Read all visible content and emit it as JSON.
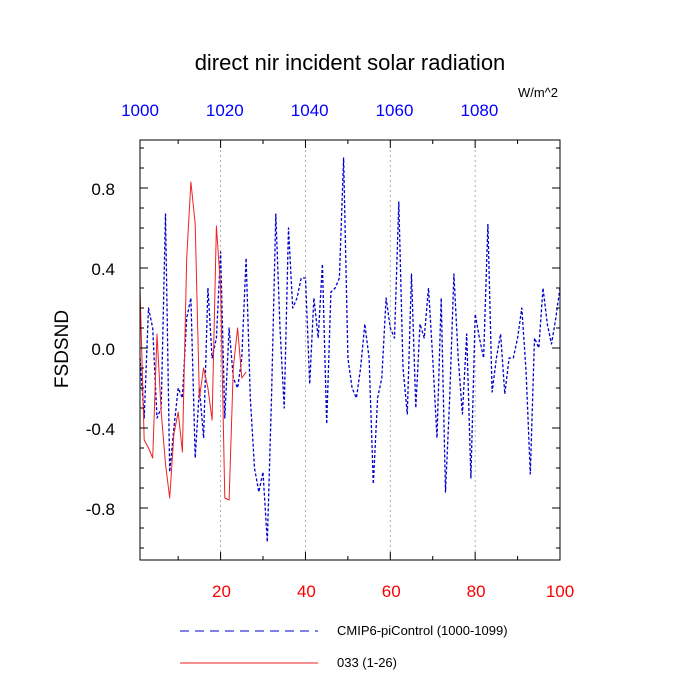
{
  "chart_data": {
    "type": "line",
    "title": "direct nir incident solar radiation",
    "units_label": "W/m^2",
    "ylabel": "FSDSND",
    "xlabel": "",
    "xlim": [
      1,
      100
    ],
    "ylim": [
      -1.06,
      1.04
    ],
    "grid": "vertical-dashed",
    "x_ticks": [
      "20",
      "40",
      "60",
      "80",
      "100"
    ],
    "y_ticks": [
      "0.8",
      "0.4",
      "0.0",
      "-0.4",
      "-0.8"
    ],
    "top_ticks": [
      "1000",
      "1020",
      "1040",
      "1060",
      "1080"
    ],
    "colors": {
      "series1": "#0000cc",
      "series2": "#ee2222",
      "bottom_ticks": "#ff0000",
      "top_ticks": "#0000ff"
    },
    "legend": {
      "placement": "bottom",
      "entries": [
        "CMIP6-piControl (1000-1099)",
        "033 (1-26)"
      ]
    },
    "series": [
      {
        "name": "CMIP6-piControl (1000-1099)",
        "style": "dashed",
        "x": [
          1,
          2,
          3,
          4,
          5,
          6,
          7,
          8,
          9,
          10,
          11,
          12,
          13,
          14,
          15,
          16,
          17,
          18,
          19,
          20,
          21,
          22,
          23,
          24,
          25,
          26,
          27,
          28,
          29,
          30,
          31,
          32,
          33,
          34,
          35,
          36,
          37,
          38,
          39,
          40,
          41,
          42,
          43,
          44,
          45,
          46,
          47,
          48,
          49,
          50,
          51,
          52,
          53,
          54,
          55,
          56,
          57,
          58,
          59,
          60,
          61,
          62,
          63,
          64,
          65,
          66,
          67,
          68,
          69,
          70,
          71,
          72,
          73,
          74,
          75,
          76,
          77,
          78,
          79,
          80,
          81,
          82,
          83,
          84,
          85,
          86,
          87,
          88,
          89,
          90,
          91,
          92,
          93,
          94,
          95,
          96,
          97,
          98,
          99,
          100
        ],
        "values": [
          -0.05,
          -0.35,
          0.2,
          0.1,
          -0.35,
          -0.3,
          0.67,
          -0.62,
          -0.4,
          -0.2,
          -0.25,
          0.15,
          0.25,
          -0.55,
          -0.2,
          -0.45,
          0.3,
          -0.05,
          0.05,
          0.48,
          -0.35,
          0.1,
          -0.15,
          -0.2,
          -0.05,
          0.45,
          -0.25,
          -0.6,
          -0.72,
          -0.62,
          -0.97,
          -0.25,
          0.67,
          0.1,
          -0.3,
          0.6,
          0.2,
          0.25,
          0.35,
          0.35,
          -0.18,
          0.25,
          0.05,
          0.42,
          -0.38,
          0.28,
          0.3,
          0.35,
          0.95,
          -0.05,
          -0.2,
          -0.25,
          -0.1,
          0.12,
          -0.05,
          -0.68,
          -0.25,
          -0.15,
          0.25,
          0.1,
          0.05,
          0.73,
          -0.1,
          -0.33,
          0.37,
          -0.3,
          0.12,
          0.05,
          0.3,
          -0.05,
          -0.45,
          0.25,
          -0.72,
          -0.25,
          0.37,
          -0.05,
          -0.33,
          0.07,
          -0.65,
          0.17,
          0.05,
          -0.05,
          0.62,
          -0.22,
          -0.05,
          0.07,
          -0.23,
          -0.05,
          -0.05,
          0.05,
          0.2,
          -0.12,
          -0.63,
          0.05,
          0.0,
          0.3,
          0.12,
          0.02,
          0.15,
          0.3
        ]
      },
      {
        "name": "033 (1-26)",
        "style": "solid",
        "x": [
          1,
          2,
          3,
          4,
          5,
          6,
          7,
          8,
          9,
          10,
          11,
          12,
          13,
          14,
          15,
          16,
          17,
          18,
          19,
          20,
          21,
          22,
          23,
          24,
          25,
          26
        ],
        "values": [
          0.3,
          -0.46,
          -0.5,
          -0.55,
          0.07,
          -0.32,
          -0.58,
          -0.75,
          -0.43,
          -0.32,
          -0.52,
          0.45,
          0.83,
          0.62,
          -0.25,
          -0.1,
          -0.2,
          -0.36,
          0.61,
          0.3,
          -0.75,
          -0.76,
          -0.1,
          0.1,
          -0.15,
          -0.12
        ]
      }
    ]
  }
}
